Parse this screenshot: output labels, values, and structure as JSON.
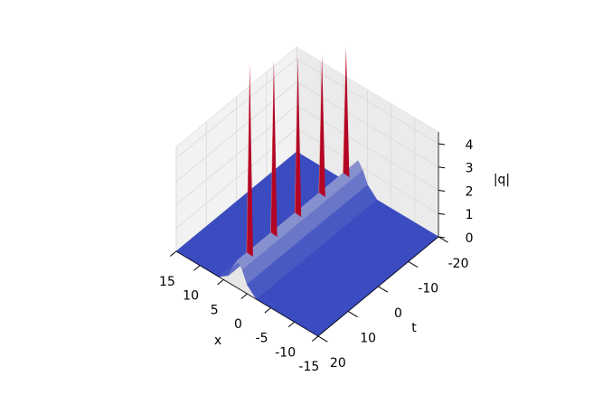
{
  "chart_data": {
    "type": "surface3d",
    "xlabel": "x",
    "ylabel": "t",
    "zlabel": "|q|",
    "xlim": [
      -15,
      15
    ],
    "xticks": [
      15,
      10,
      5,
      0,
      -5,
      -10,
      -15
    ],
    "ylim": [
      -20,
      20
    ],
    "yticks": [
      -20,
      -10,
      0,
      10,
      20
    ],
    "zlim": [
      0,
      4.5
    ],
    "zticks": [
      0,
      1,
      2,
      3,
      4
    ],
    "ridge": {
      "x": [
        15,
        6,
        4,
        3,
        2,
        1,
        0,
        -2,
        -15
      ],
      "values": [
        0,
        0,
        0.3,
        0.8,
        1.2,
        0.9,
        0.4,
        0,
        0
      ]
    },
    "peaks": {
      "x": [
        2,
        2,
        2,
        2,
        2
      ],
      "t": [
        -16,
        -8,
        0,
        8,
        16
      ],
      "values": [
        6.5,
        7,
        7.8,
        8.5,
        9.2
      ]
    },
    "colormap": [
      "#3b4cc0",
      "#dddddd",
      "#b40426"
    ]
  }
}
